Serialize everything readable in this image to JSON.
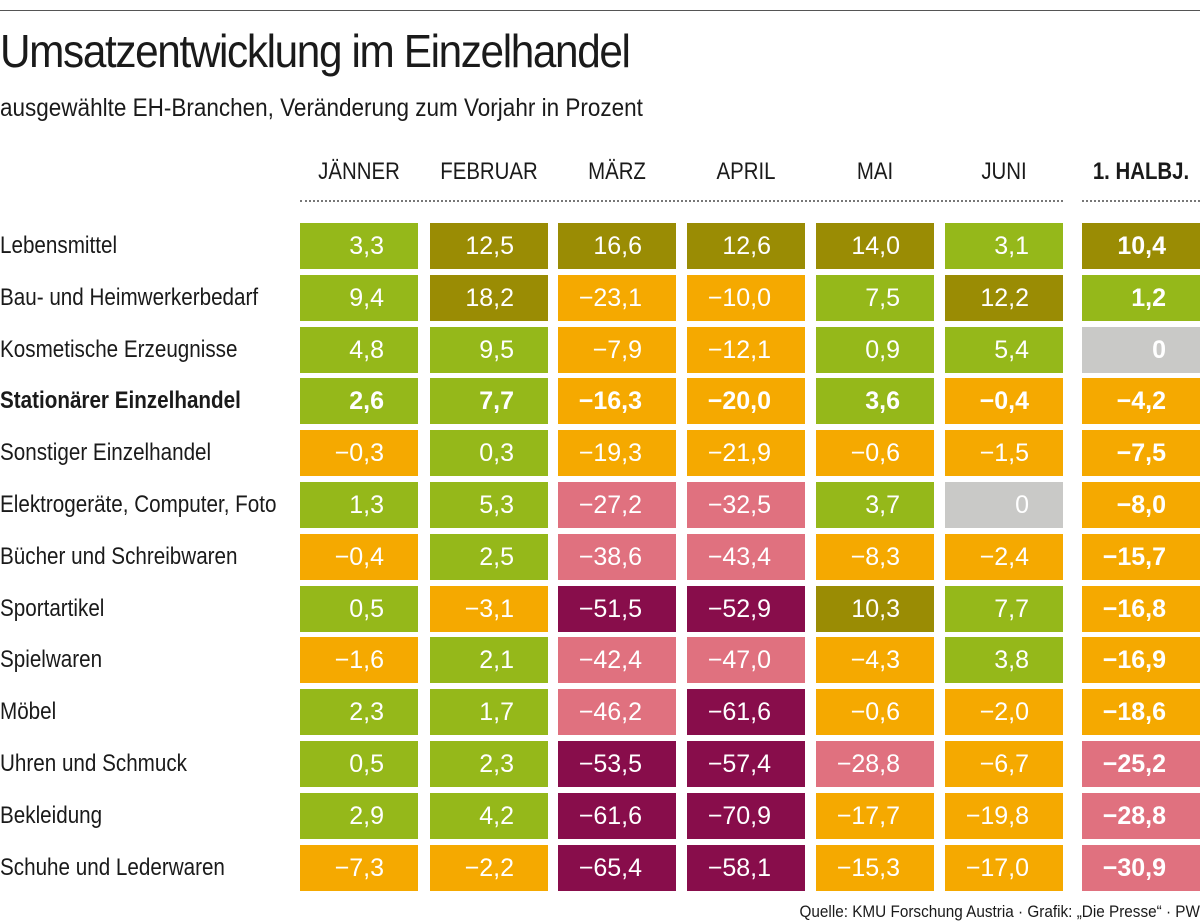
{
  "title": "Umsatzentwicklung im Einzelhandel",
  "subtitle": "ausgewählte EH-Branchen, Veränderung zum Vorjahr in Prozent",
  "source": "Quelle: KMU Forschung Austria · Grafik: „Die Presse“ · PW",
  "colors": {
    "gt10": "#9a8c04",
    "pos": "#95b81a",
    "zero": "#c9c9c7",
    "neg": "#f5a900",
    "neg25": "#e0717f",
    "neg50": "#880d4b"
  },
  "chart_data": {
    "type": "heatmap",
    "title": "Umsatzentwicklung im Einzelhandel",
    "columns": [
      "JÄNNER",
      "FEBRUAR",
      "MÄRZ",
      "APRIL",
      "MAI",
      "JUNI",
      "1. HALBJ."
    ],
    "rows": [
      {
        "label": "Lebensmittel",
        "bold": false,
        "values": [
          "3,3",
          "12,5",
          "16,6",
          "12,6",
          "14,0",
          "3,1",
          "10,4"
        ]
      },
      {
        "label": "Bau- und Heimwerkerbedarf",
        "bold": false,
        "values": [
          "9,4",
          "18,2",
          "−23,1",
          "−10,0",
          "7,5",
          "12,2",
          "1,2"
        ]
      },
      {
        "label": "Kosmetische Erzeugnisse",
        "bold": false,
        "values": [
          "4,8",
          "9,5",
          "−7,9",
          "−12,1",
          "0,9",
          "5,4",
          "0"
        ]
      },
      {
        "label": "Stationärer Einzelhandel",
        "bold": true,
        "values": [
          "2,6",
          "7,7",
          "−16,3",
          "−20,0",
          "3,6",
          "−0,4",
          "−4,2"
        ]
      },
      {
        "label": "Sonstiger Einzelhandel",
        "bold": false,
        "values": [
          "−0,3",
          "0,3",
          "−19,3",
          "−21,9",
          "−0,6",
          "−1,5",
          "−7,5"
        ]
      },
      {
        "label": "Elektrogeräte, Computer, Foto",
        "bold": false,
        "values": [
          "1,3",
          "5,3",
          "−27,2",
          "−32,5",
          "3,7",
          "0",
          "−8,0"
        ]
      },
      {
        "label": "Bücher und Schreibwaren",
        "bold": false,
        "values": [
          "−0,4",
          "2,5",
          "−38,6",
          "−43,4",
          "−8,3",
          "−2,4",
          "−15,7"
        ]
      },
      {
        "label": "Sportartikel",
        "bold": false,
        "values": [
          "0,5",
          "−3,1",
          "−51,5",
          "−52,9",
          "10,3",
          "7,7",
          "−16,8"
        ]
      },
      {
        "label": "Spielwaren",
        "bold": false,
        "values": [
          "−1,6",
          "2,1",
          "−42,4",
          "−47,0",
          "−4,3",
          "3,8",
          "−16,9"
        ]
      },
      {
        "label": "Möbel",
        "bold": false,
        "values": [
          "2,3",
          "1,7",
          "−46,2",
          "−61,6",
          "−0,6",
          "−2,0",
          "−18,6"
        ]
      },
      {
        "label": "Uhren und Schmuck",
        "bold": false,
        "values": [
          "0,5",
          "2,3",
          "−53,5",
          "−57,4",
          "−28,8",
          "−6,7",
          "−25,2"
        ]
      },
      {
        "label": "Bekleidung",
        "bold": false,
        "values": [
          "2,9",
          "4,2",
          "−61,6",
          "−70,9",
          "−17,7",
          "−19,8",
          "−28,8"
        ]
      },
      {
        "label": "Schuhe und Lederwaren",
        "bold": false,
        "values": [
          "−7,3",
          "−2,2",
          "−65,4",
          "−58,1",
          "−15,3",
          "−17,0",
          "−30,9"
        ]
      }
    ]
  }
}
